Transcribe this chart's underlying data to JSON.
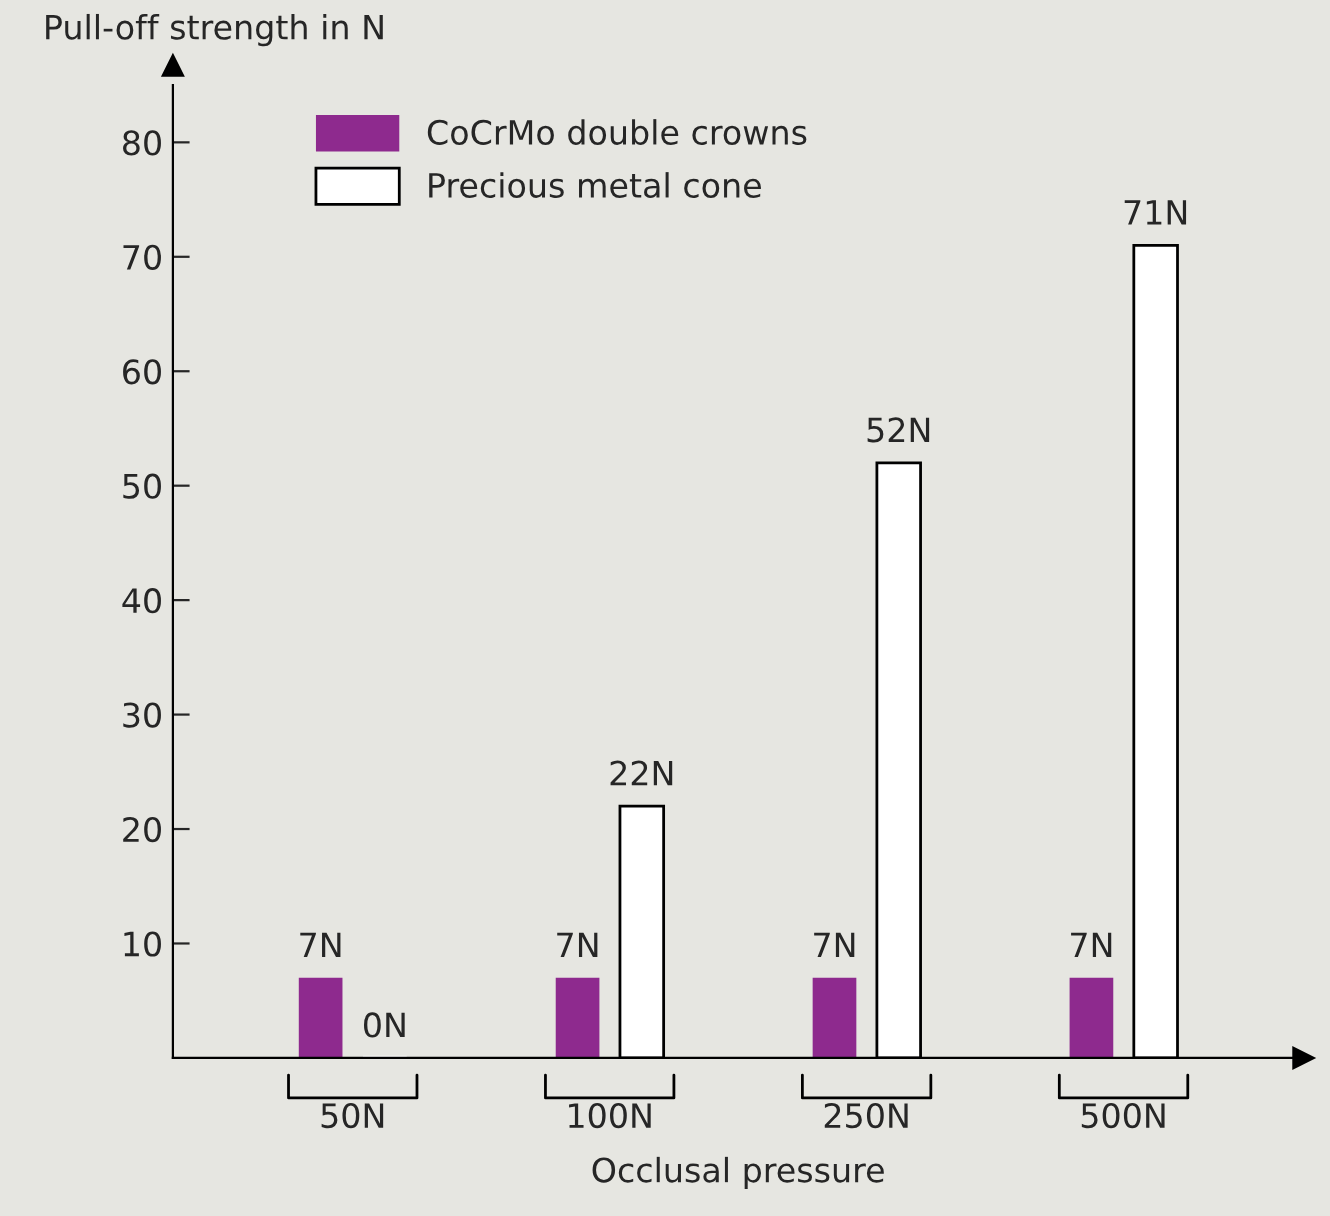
{
  "chart_data": {
    "type": "bar",
    "xlabel": "Occlusal pressure",
    "ylabel": "Pull-off strength in N",
    "categories": [
      "50N",
      "100N",
      "250N",
      "500N"
    ],
    "series": [
      {
        "name": "CoCrMo double crowns",
        "color": "#8e2a8e",
        "values": [
          7,
          7,
          7,
          7
        ],
        "value_labels": [
          "7N",
          "7N",
          "7N",
          "7N"
        ]
      },
      {
        "name": "Precious metal cone",
        "color": "#ffffff",
        "values": [
          0,
          22,
          52,
          71
        ],
        "value_labels": [
          "0N",
          "22N",
          "52N",
          "71N"
        ]
      }
    ],
    "ylim": [
      0,
      85
    ],
    "yticks": [
      10,
      20,
      30,
      40,
      50,
      60,
      70,
      80
    ],
    "grid": false,
    "legend": "top left"
  }
}
